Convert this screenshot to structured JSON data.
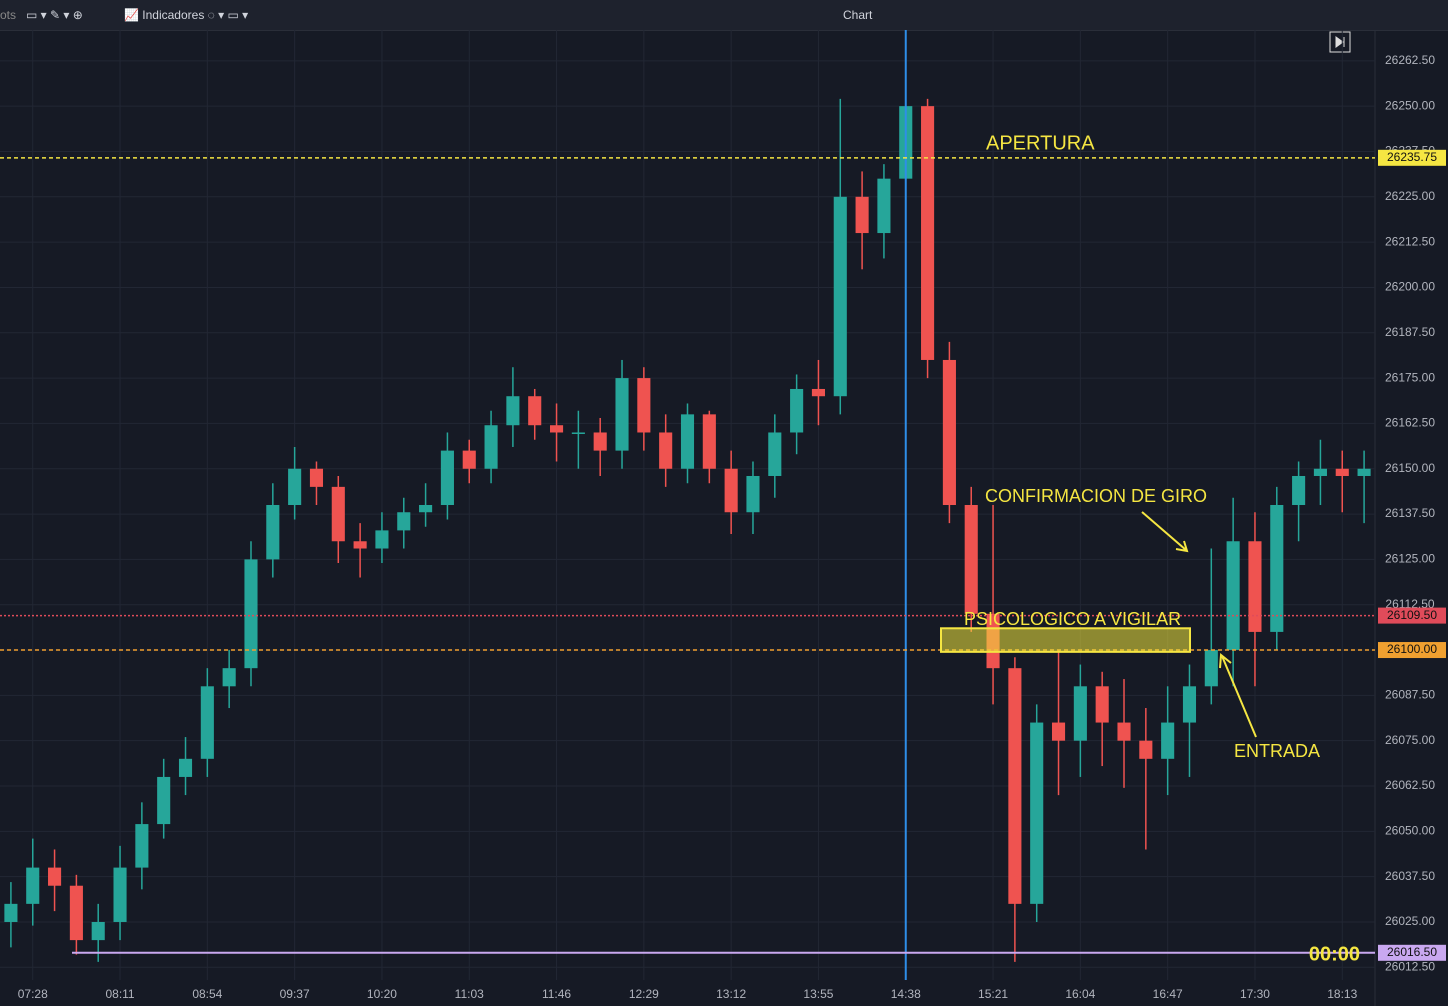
{
  "toolbar": {
    "left_text": "ots",
    "indicators": "Indicadores",
    "title": "Chart"
  },
  "chart_data": {
    "type": "candlestick",
    "up_color": "#26a69a",
    "down_color": "#ef5350",
    "candles": {
      "open": [
        26025,
        26030,
        26040,
        26035,
        26020,
        26025,
        26040,
        26052,
        26065,
        26070,
        26090,
        26095,
        26125,
        26140,
        26150,
        26145,
        26130,
        26128,
        26133,
        26138,
        26140,
        26155,
        26150,
        26162,
        26170,
        26162,
        26160,
        26160,
        26155,
        26175,
        26160,
        26150,
        26165,
        26150,
        26138,
        26148,
        26160,
        26172,
        26170,
        26225,
        26215,
        26230,
        26250,
        26180,
        26140,
        26110,
        26095,
        26030,
        26080,
        26075,
        26090,
        26080,
        26075,
        26070,
        26080,
        26090,
        26100,
        26130,
        26105,
        26140,
        26148,
        26150,
        26148
      ],
      "high": [
        26036,
        26048,
        26045,
        26038,
        26030,
        26046,
        26058,
        26070,
        26076,
        26095,
        26100,
        26130,
        26146,
        26156,
        26152,
        26148,
        26135,
        26138,
        26142,
        26146,
        26160,
        26158,
        26166,
        26178,
        26172,
        26168,
        26166,
        26164,
        26180,
        26178,
        26165,
        26168,
        26166,
        26155,
        26152,
        26165,
        26176,
        26180,
        26252,
        26232,
        26234,
        26266,
        26252,
        26185,
        26145,
        26140,
        26098,
        26085,
        26100,
        26096,
        26094,
        26092,
        26084,
        26090,
        26096,
        26128,
        26142,
        26138,
        26145,
        26152,
        26158,
        26155,
        26155
      ],
      "low": [
        26018,
        26024,
        26028,
        26016,
        26014,
        26020,
        26034,
        26048,
        26060,
        26065,
        26084,
        26090,
        26120,
        26136,
        26140,
        26124,
        26120,
        26124,
        26128,
        26134,
        26136,
        26146,
        26146,
        26156,
        26158,
        26152,
        26150,
        26148,
        26150,
        26155,
        26145,
        26146,
        26146,
        26132,
        26132,
        26142,
        26154,
        26162,
        26165,
        26205,
        26208,
        26225,
        26175,
        26135,
        26105,
        26085,
        26014,
        26025,
        26060,
        26065,
        26068,
        26062,
        26045,
        26060,
        26065,
        26085,
        26090,
        26090,
        26100,
        26130,
        26140,
        26138,
        26135
      ],
      "close": [
        26030,
        26040,
        26035,
        26020,
        26025,
        26040,
        26052,
        26065,
        26070,
        26090,
        26095,
        26125,
        26140,
        26150,
        26145,
        26130,
        26128,
        26133,
        26138,
        26140,
        26155,
        26150,
        26162,
        26170,
        26162,
        26160,
        26160,
        26155,
        26175,
        26160,
        26150,
        26165,
        26150,
        26138,
        26148,
        26160,
        26172,
        26170,
        26225,
        26215,
        26230,
        26250,
        26180,
        26140,
        26110,
        26095,
        26030,
        26080,
        26075,
        26090,
        26080,
        26075,
        26070,
        26080,
        26090,
        26100,
        26130,
        26105,
        26140,
        26148,
        26150,
        26148,
        26150
      ]
    },
    "xlim": [
      -0.5,
      62.5
    ],
    "xticks": [
      {
        "value": 1,
        "label": "07:28"
      },
      {
        "value": 5,
        "label": "08:11"
      },
      {
        "value": 9,
        "label": "08:54"
      },
      {
        "value": 13,
        "label": "09:37"
      },
      {
        "value": 17,
        "label": "10:20"
      },
      {
        "value": 21,
        "label": "11:03"
      },
      {
        "value": 25,
        "label": "11:46"
      },
      {
        "value": 29,
        "label": "12:29"
      },
      {
        "value": 33,
        "label": "13:12"
      },
      {
        "value": 37,
        "label": "13:55"
      },
      {
        "value": 41,
        "label": "14:38"
      },
      {
        "value": 45,
        "label": "15:21"
      },
      {
        "value": 49,
        "label": "16:04"
      },
      {
        "value": 53,
        "label": "16:47"
      },
      {
        "value": 57,
        "label": "17:30"
      },
      {
        "value": 61,
        "label": "18:13"
      }
    ],
    "ylim": [
      26009,
      26271
    ],
    "yticks": [
      {
        "value": 26012.5,
        "label": "26012.50"
      },
      {
        "value": 26025,
        "label": "26025.00"
      },
      {
        "value": 26037.5,
        "label": "26037.50"
      },
      {
        "value": 26050,
        "label": "26050.00"
      },
      {
        "value": 26062.5,
        "label": "26062.50"
      },
      {
        "value": 26075,
        "label": "26075.00"
      },
      {
        "value": 26087.5,
        "label": "26087.50"
      },
      {
        "value": 26100,
        "label": "26100.00"
      },
      {
        "value": 26112.5,
        "label": "26112.50"
      },
      {
        "value": 26125,
        "label": "26125.00"
      },
      {
        "value": 26137.5,
        "label": "26137.50"
      },
      {
        "value": 26150,
        "label": "26150.00"
      },
      {
        "value": 26162.5,
        "label": "26162.50"
      },
      {
        "value": 26175,
        "label": "26175.00"
      },
      {
        "value": 26187.5,
        "label": "26187.50"
      },
      {
        "value": 26200,
        "label": "26200.00"
      },
      {
        "value": 26212.5,
        "label": "26212.50"
      },
      {
        "value": 26225,
        "label": "26225.00"
      },
      {
        "value": 26237.5,
        "label": "26237.50"
      },
      {
        "value": 26250,
        "label": "26250.00"
      },
      {
        "value": 26262.5,
        "label": "26262.50"
      }
    ],
    "grid": true,
    "vline_x": 41,
    "levels": {
      "values": [
        26235.75,
        26109.5,
        26100,
        26016.5
      ],
      "value_labels": [
        "26235.75",
        "26109.50",
        "26100.00",
        "26016.50"
      ],
      "colors": [
        "#f5e642",
        "#e04b5a",
        "#f0a030",
        "#c9a8f0"
      ],
      "styles": [
        "dashed",
        "dotted",
        "dashed",
        "solid"
      ]
    },
    "zone": [
      26099.5,
      26106
    ],
    "annotations": [
      "APERTURA",
      "CONFIRMACION DE GIRO",
      "PSICOLOGICO A VIGILAR",
      "ENTRADA",
      "00:00"
    ]
  }
}
